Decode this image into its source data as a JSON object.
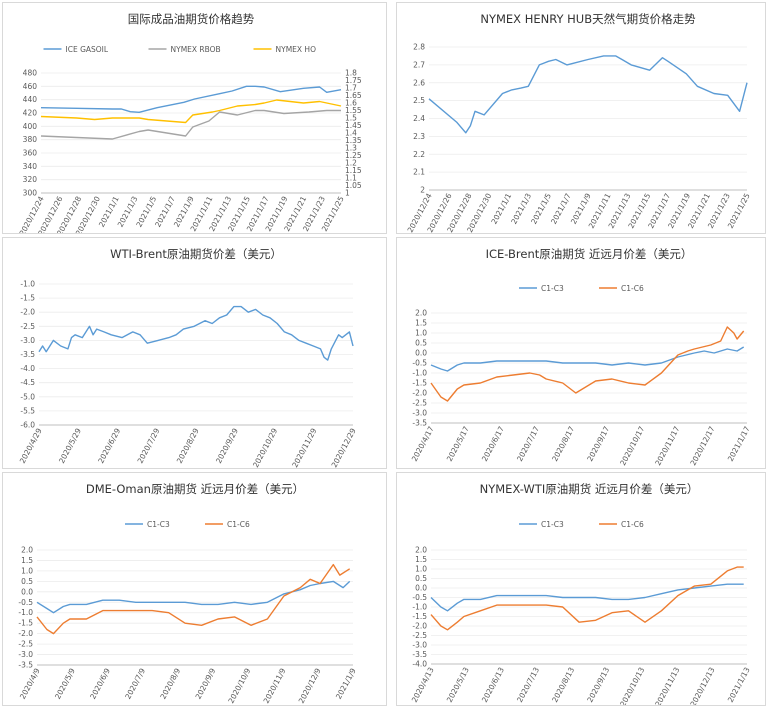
{
  "chart_data": [
    {
      "type": "line",
      "title": "国际成品油期货价格趋势",
      "categories": [
        "2020/12/24",
        "2020/12/26",
        "2020/12/28",
        "2020/12/30",
        "2021/1/1",
        "2021/1/3",
        "2021/1/5",
        "2021/1/7",
        "2021/1/9",
        "2021/1/11",
        "2021/1/13",
        "2021/1/15",
        "2021/1/17",
        "2021/1/19",
        "2021/1/21",
        "2021/1/23",
        "2021/1/25"
      ],
      "ylim": [
        300,
        480
      ],
      "yticks": [
        "300",
        "320",
        "340",
        "360",
        "380",
        "400",
        "420",
        "440",
        "460",
        "480"
      ],
      "y2lim": [
        1,
        1.8
      ],
      "y2ticks": [
        "1",
        "1.05",
        "1.1",
        "1.15",
        "1.2",
        "1.25",
        "1.3",
        "1.35",
        "1.4",
        "1.45",
        "1.5",
        "1.55",
        "1.6",
        "1.65",
        "1.7",
        "1.75",
        "1.8"
      ],
      "legend": "top",
      "series": [
        {
          "name": "ICE GASOIL",
          "axis": "left",
          "color": "#5b9bd5",
          "x": [
            0,
            2,
            4,
            4.5,
            5,
            5.5,
            6.5,
            8,
            8.6,
            10,
            10.7,
            11.5,
            12,
            12.5,
            13.4,
            14.7,
            15.6,
            16,
            16.8
          ],
          "y": [
            428,
            427,
            426,
            426,
            422,
            421,
            428,
            436,
            441,
            449,
            453,
            460,
            460,
            459,
            452,
            457,
            459,
            451,
            455
          ]
        },
        {
          "name": "NYMEX RBOB",
          "axis": "right",
          "color": "#a5a5a5",
          "x": [
            0,
            2,
            4,
            5.5,
            6,
            8.1,
            8.5,
            9.4,
            10,
            10.5,
            11,
            12,
            12.5,
            13.6,
            15,
            16,
            16.8
          ],
          "y": [
            1.38,
            1.37,
            1.36,
            1.41,
            1.42,
            1.38,
            1.44,
            1.48,
            1.54,
            1.53,
            1.52,
            1.55,
            1.55,
            1.53,
            1.54,
            1.55,
            1.55
          ]
        },
        {
          "name": "NYMEX HO",
          "axis": "right",
          "color": "#ffc000",
          "x": [
            0,
            2,
            3,
            4,
            5.5,
            6,
            8.1,
            8.5,
            9.6,
            10,
            11,
            12,
            12.5,
            13.2,
            14.7,
            15.6,
            16,
            16.8
          ],
          "y": [
            1.51,
            1.5,
            1.49,
            1.5,
            1.5,
            1.49,
            1.47,
            1.52,
            1.54,
            1.55,
            1.58,
            1.59,
            1.6,
            1.62,
            1.6,
            1.61,
            1.6,
            1.58
          ]
        }
      ]
    },
    {
      "type": "line",
      "title": "NYMEX HENRY HUB天然气期货价格走势",
      "categories": [
        "2020/12/24",
        "2020/12/26",
        "2020/12/28",
        "2020/12/30",
        "2021/1/1",
        "2021/1/3",
        "2021/1/5",
        "2021/1/7",
        "2021/1/9",
        "2021/1/11",
        "2021/1/13",
        "2021/1/15",
        "2021/1/17",
        "2021/1/19",
        "2021/1/21",
        "2021/1/23",
        "2021/1/25"
      ],
      "ylim": [
        2,
        2.8
      ],
      "yticks": [
        "2",
        "2.1",
        "2.2",
        "2.3",
        "2.4",
        "2.5",
        "2.6",
        "2.7",
        "2.8"
      ],
      "series": [
        {
          "name": "",
          "color": "#5b9bd5",
          "x": [
            0,
            3,
            4,
            4.5,
            5,
            6,
            8,
            8.5,
            9,
            10,
            10.8,
            12,
            12.5,
            13,
            13.8,
            15,
            15.8,
            17.3,
            19,
            20.3,
            21,
            22,
            24,
            25.4,
            26,
            28,
            29.2,
            31,
            32.5,
            33.8,
            34.6
          ],
          "y": [
            2.51,
            2.38,
            2.32,
            2.36,
            2.44,
            2.42,
            2.54,
            2.55,
            2.56,
            2.57,
            2.58,
            2.7,
            2.71,
            2.72,
            2.73,
            2.7,
            2.71,
            2.73,
            2.75,
            2.75,
            2.73,
            2.7,
            2.67,
            2.74,
            2.72,
            2.65,
            2.58,
            2.54,
            2.53,
            2.44,
            2.6
          ]
        }
      ]
    },
    {
      "type": "line",
      "title": "WTI-Brent原油期货价差（美元）",
      "categories": [
        "2020/4/29",
        "2020/5/29",
        "2020/6/29",
        "2020/7/29",
        "2020/8/29",
        "2020/9/29",
        "2020/10/29",
        "2020/11/29",
        "2020/12/29"
      ],
      "ylim": [
        -6,
        -1
      ],
      "yticks": [
        "-6.0",
        "-5.5",
        "-5.0",
        "-4.5",
        "-4.0",
        "-3.5",
        "-3.0",
        "-2.5",
        "-2.0",
        "-1.5",
        "-1.0"
      ],
      "series": [
        {
          "name": "",
          "color": "#5b9bd5",
          "x": [
            0,
            0.1,
            0.2,
            0.4,
            0.6,
            0.8,
            0.9,
            1.0,
            1.2,
            1.4,
            1.5,
            1.6,
            1.8,
            2.0,
            2.3,
            2.6,
            2.8,
            3.0,
            3.3,
            3.6,
            3.8,
            4.0,
            4.3,
            4.6,
            4.8,
            5.0,
            5.2,
            5.4,
            5.6,
            5.8,
            6.0,
            6.2,
            6.4,
            6.6,
            6.8,
            7.0,
            7.2,
            7.4,
            7.6,
            7.8,
            7.9,
            8.0,
            8.1,
            8.3,
            8.4,
            8.6,
            8.7
          ],
          "y": [
            -3.4,
            -3.2,
            -3.4,
            -3.0,
            -3.2,
            -3.3,
            -2.9,
            -2.8,
            -2.9,
            -2.5,
            -2.8,
            -2.6,
            -2.7,
            -2.8,
            -2.9,
            -2.7,
            -2.8,
            -3.1,
            -3.0,
            -2.9,
            -2.8,
            -2.6,
            -2.5,
            -2.3,
            -2.4,
            -2.2,
            -2.1,
            -1.8,
            -1.8,
            -2.0,
            -1.9,
            -2.1,
            -2.2,
            -2.4,
            -2.7,
            -2.8,
            -3.0,
            -3.1,
            -3.2,
            -3.3,
            -3.6,
            -3.7,
            -3.3,
            -2.8,
            -2.9,
            -2.7,
            -3.2
          ]
        }
      ]
    },
    {
      "type": "line",
      "title": "ICE-Brent原油期货 近远月价差（美元）",
      "categories": [
        "2020/4/17",
        "2020/5/17",
        "2020/6/17",
        "2020/7/17",
        "2020/8/17",
        "2020/9/17",
        "2020/10/17",
        "2020/11/17",
        "2020/12/17",
        "2021/1/17"
      ],
      "ylim": [
        -3.5,
        2
      ],
      "yticks": [
        "-3.5",
        "-3.0",
        "-2.5",
        "-2.0",
        "-1.5",
        "-1.0",
        "-0.5",
        "0.0",
        "0.5",
        "1.0",
        "1.5",
        "2.0"
      ],
      "legend": "top",
      "series": [
        {
          "name": "C1-C3",
          "color": "#5b9bd5",
          "x": [
            0,
            0.3,
            0.5,
            0.8,
            1.0,
            1.5,
            2.0,
            2.5,
            3.0,
            3.5,
            4.0,
            4.5,
            5.0,
            5.5,
            6.0,
            6.5,
            7.0,
            7.5,
            8.0,
            8.3,
            8.6,
            9.0,
            9.3,
            9.5
          ],
          "y": [
            -0.6,
            -0.8,
            -0.9,
            -0.6,
            -0.5,
            -0.5,
            -0.4,
            -0.4,
            -0.4,
            -0.4,
            -0.5,
            -0.5,
            -0.5,
            -0.6,
            -0.5,
            -0.6,
            -0.5,
            -0.2,
            0.0,
            0.1,
            0.0,
            0.2,
            0.1,
            0.3
          ]
        },
        {
          "name": "C1-C6",
          "color": "#ed7d31",
          "x": [
            0,
            0.3,
            0.5,
            0.8,
            1.0,
            1.5,
            2.0,
            2.5,
            3.0,
            3.3,
            3.5,
            4.0,
            4.4,
            4.5,
            5.0,
            5.5,
            6.0,
            6.5,
            7.0,
            7.5,
            7.8,
            8.0,
            8.5,
            8.8,
            9.0,
            9.2,
            9.3,
            9.5
          ],
          "y": [
            -1.5,
            -2.2,
            -2.4,
            -1.8,
            -1.6,
            -1.5,
            -1.2,
            -1.1,
            -1.0,
            -1.1,
            -1.3,
            -1.5,
            -2.0,
            -1.9,
            -1.4,
            -1.3,
            -1.5,
            -1.6,
            -1.0,
            -0.1,
            0.1,
            0.2,
            0.4,
            0.6,
            1.3,
            1.0,
            0.7,
            1.1
          ]
        }
      ]
    },
    {
      "type": "line",
      "title": "DME-Oman原油期货 近远月价差（美元）",
      "categories": [
        "2020/4/9",
        "2020/5/9",
        "2020/6/9",
        "2020/7/9",
        "2020/8/9",
        "2020/9/9",
        "2020/10/9",
        "2020/11/9",
        "2020/12/9",
        "2021/1/9"
      ],
      "ylim": [
        -3.5,
        2
      ],
      "yticks": [
        "-3.5",
        "-3.0",
        "-2.5",
        "-2.0",
        "-1.5",
        "-1.0",
        "-0.5",
        "0.0",
        "0.5",
        "1.0",
        "1.5",
        "2.0"
      ],
      "legend": "top",
      "series": [
        {
          "name": "C1-C3",
          "color": "#5b9bd5",
          "x": [
            0,
            0.3,
            0.5,
            0.8,
            1.0,
            1.5,
            2.0,
            2.5,
            3.0,
            3.5,
            4.0,
            4.5,
            5.0,
            5.5,
            6.0,
            6.5,
            7.0,
            7.5,
            8.0,
            8.3,
            8.6,
            9.0,
            9.3,
            9.5
          ],
          "y": [
            -0.5,
            -0.8,
            -1.0,
            -0.7,
            -0.6,
            -0.6,
            -0.4,
            -0.4,
            -0.5,
            -0.5,
            -0.5,
            -0.5,
            -0.6,
            -0.6,
            -0.5,
            -0.6,
            -0.5,
            -0.1,
            0.1,
            0.3,
            0.4,
            0.5,
            0.2,
            0.5
          ]
        },
        {
          "name": "C1-C6",
          "color": "#ed7d31",
          "x": [
            0,
            0.3,
            0.5,
            0.8,
            1.0,
            1.5,
            2.0,
            2.5,
            3.0,
            3.5,
            4.0,
            4.5,
            5.0,
            5.5,
            6.0,
            6.5,
            7.0,
            7.5,
            8.0,
            8.3,
            8.6,
            9.0,
            9.2,
            9.5
          ],
          "y": [
            -1.2,
            -1.8,
            -2.0,
            -1.5,
            -1.3,
            -1.3,
            -0.9,
            -0.9,
            -0.9,
            -0.9,
            -1.0,
            -1.5,
            -1.6,
            -1.3,
            -1.2,
            -1.6,
            -1.3,
            -0.2,
            0.2,
            0.6,
            0.4,
            1.3,
            0.8,
            1.1
          ]
        }
      ]
    },
    {
      "type": "line",
      "title": "NYMEX-WTI原油期货 近远月价差（美元）",
      "categories": [
        "2020/4/13",
        "2020/5/13",
        "2020/6/13",
        "2020/7/13",
        "2020/8/13",
        "2020/9/13",
        "2020/10/13",
        "2020/11/13",
        "2020/12/13",
        "2021/1/13"
      ],
      "ylim": [
        -4,
        2
      ],
      "yticks": [
        "-4.0",
        "-3.5",
        "-3.0",
        "-2.5",
        "-2.0",
        "-1.5",
        "-1.0",
        "-0.5",
        "0.0",
        "0.5",
        "1.0",
        "1.5",
        "2.0"
      ],
      "legend": "top",
      "series": [
        {
          "name": "C1-C3",
          "color": "#5b9bd5",
          "x": [
            0,
            0.3,
            0.5,
            0.8,
            1.0,
            1.5,
            2.0,
            2.5,
            3.0,
            3.5,
            4.0,
            4.5,
            5.0,
            5.5,
            6.0,
            6.5,
            7.0,
            7.5,
            8.0,
            8.5,
            9.0,
            9.5
          ],
          "y": [
            -0.5,
            -1.0,
            -1.2,
            -0.8,
            -0.6,
            -0.6,
            -0.4,
            -0.4,
            -0.4,
            -0.4,
            -0.5,
            -0.5,
            -0.5,
            -0.6,
            -0.6,
            -0.5,
            -0.3,
            -0.1,
            0.0,
            0.1,
            0.2,
            0.2
          ]
        },
        {
          "name": "C1-C6",
          "color": "#ed7d31",
          "x": [
            0,
            0.3,
            0.5,
            0.8,
            1.0,
            1.5,
            2.0,
            2.5,
            3.0,
            3.5,
            4.0,
            4.5,
            5.0,
            5.5,
            6.0,
            6.5,
            7.0,
            7.5,
            8.0,
            8.5,
            9.0,
            9.3,
            9.5
          ],
          "y": [
            -1.4,
            -2.0,
            -2.2,
            -1.8,
            -1.5,
            -1.2,
            -0.9,
            -0.9,
            -0.9,
            -0.9,
            -1.0,
            -1.8,
            -1.7,
            -1.3,
            -1.2,
            -1.8,
            -1.2,
            -0.4,
            0.1,
            0.2,
            0.9,
            1.1,
            1.1
          ]
        }
      ]
    }
  ]
}
